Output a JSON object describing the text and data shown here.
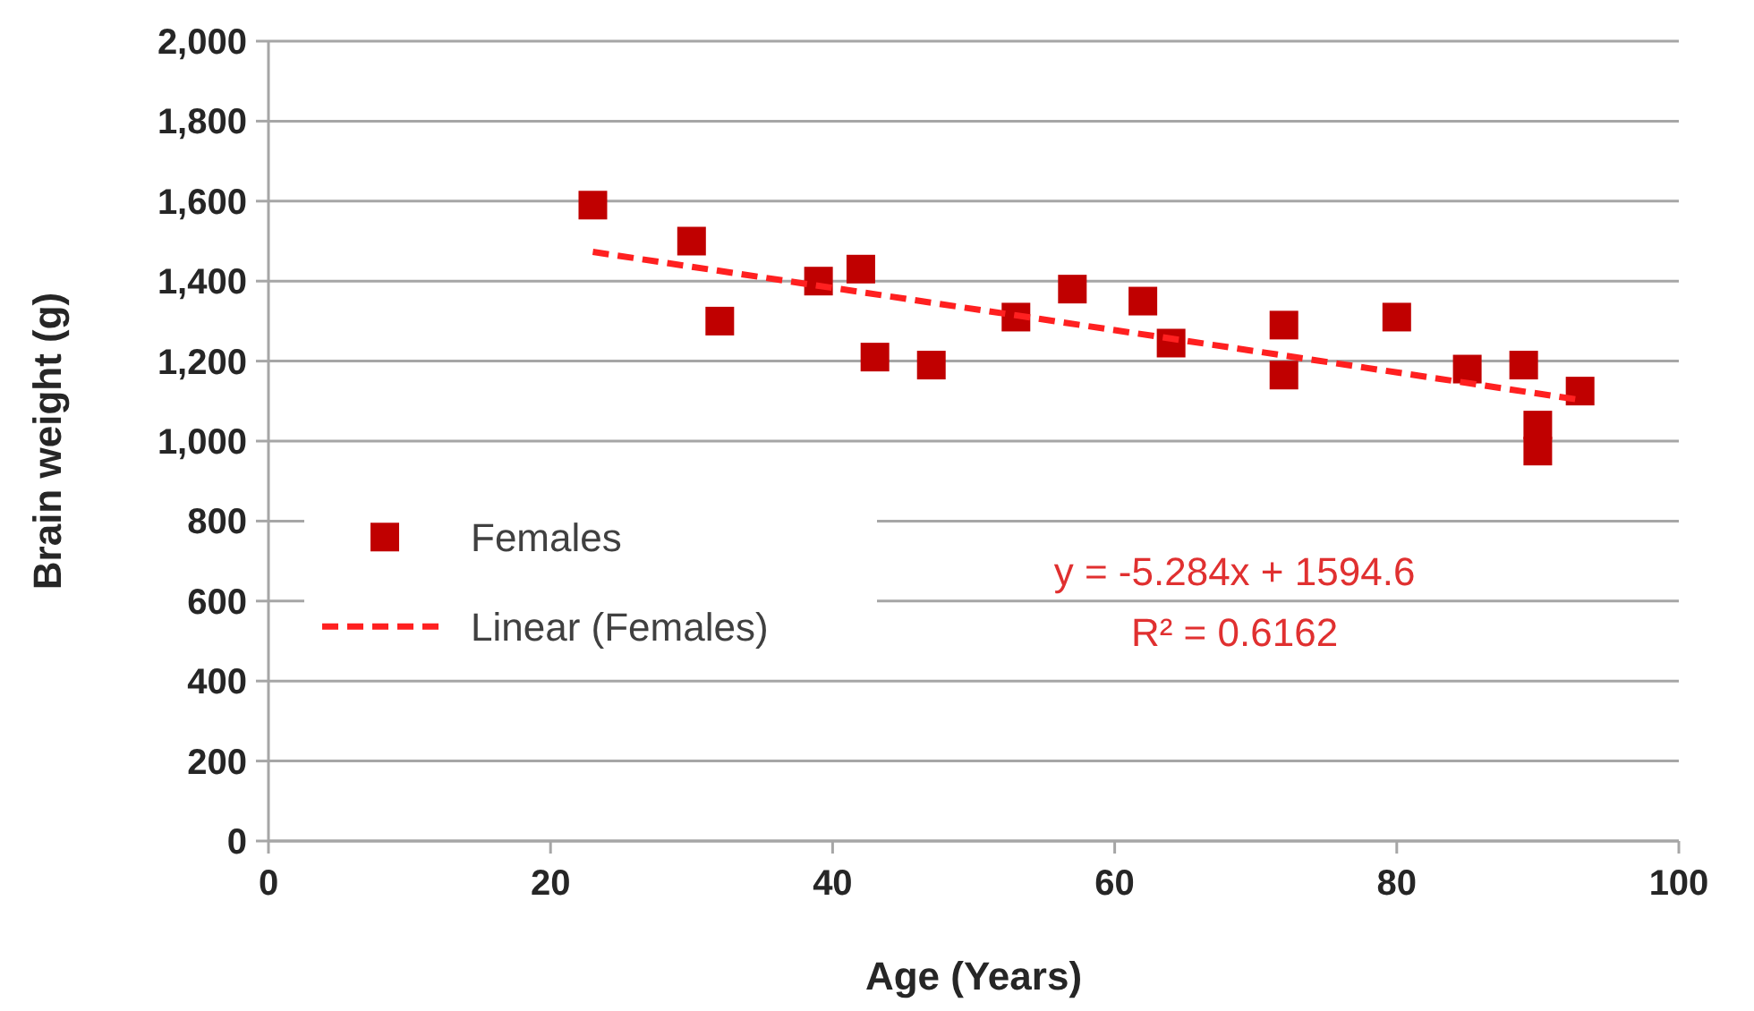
{
  "chart_data": {
    "type": "scatter",
    "xlabel": "Age (Years)",
    "ylabel": "Brain weight (g)",
    "xlim": [
      0,
      100
    ],
    "xticks": [
      0,
      20,
      40,
      60,
      80,
      100
    ],
    "ylim": [
      0,
      2000
    ],
    "yticks": [
      {
        "value": 0,
        "label": "0"
      },
      {
        "value": 200,
        "label": "200"
      },
      {
        "value": 400,
        "label": "400"
      },
      {
        "value": 600,
        "label": "600"
      },
      {
        "value": 800,
        "label": "800"
      },
      {
        "value": 1000,
        "label": "1,000"
      },
      {
        "value": 1200,
        "label": "1,200"
      },
      {
        "value": 1400,
        "label": "1,400"
      },
      {
        "value": 1600,
        "label": "1,600"
      },
      {
        "value": 1800,
        "label": "1,800"
      },
      {
        "value": 2000,
        "label": "2,000"
      }
    ],
    "grid": "y",
    "legend": "bottom left",
    "series": [
      {
        "name": "Females",
        "marker": "square",
        "color": "#c00000",
        "x": [
          23,
          30,
          32,
          39,
          42,
          43,
          47,
          53,
          57,
          62,
          64,
          72,
          72,
          80,
          85,
          89,
          90,
          90,
          93
        ],
        "values": [
          1590,
          1500,
          1300,
          1400,
          1430,
          1210,
          1190,
          1310,
          1380,
          1350,
          1245,
          1290,
          1165,
          1310,
          1180,
          1190,
          1040,
          975,
          1125
        ]
      },
      {
        "name": "Linear (Females)",
        "type": "line",
        "line_style": "dashed",
        "color": "#ff2020",
        "x": [
          23,
          93
        ],
        "values": [
          1473,
          1103
        ]
      }
    ],
    "annotations": [
      "y = -5.284x + 1594.6",
      "R² = 0.6162"
    ]
  }
}
